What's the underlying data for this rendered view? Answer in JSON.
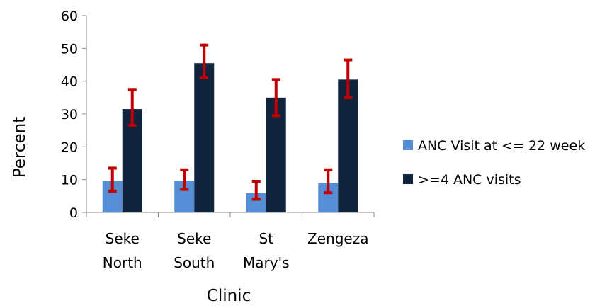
{
  "chart_data": {
    "type": "bar",
    "title": "",
    "xlabel": "Clinic",
    "ylabel": "Percent",
    "ylim": [
      0,
      60
    ],
    "yticks": [
      0,
      10,
      20,
      30,
      40,
      50,
      60
    ],
    "categories": [
      [
        "Seke",
        "North"
      ],
      [
        "Seke",
        "South"
      ],
      [
        "St",
        "Mary's"
      ],
      [
        "Zengeza"
      ]
    ],
    "series": [
      {
        "name": "ANC Visit at <= 22 week",
        "color": "#558ED5",
        "values": [
          9.5,
          9.5,
          6,
          9
        ],
        "error_low": [
          6.5,
          7,
          4,
          6
        ],
        "error_high": [
          13.5,
          13,
          9.5,
          13
        ]
      },
      {
        "name": ">=4 ANC visits",
        "color": "#10243E",
        "values": [
          31.5,
          45.5,
          35,
          40.5
        ],
        "error_low": [
          26.5,
          41,
          29.5,
          35
        ],
        "error_high": [
          37.5,
          51,
          40.5,
          46.5
        ]
      }
    ],
    "error_bar_color": "#C00000",
    "legend_position": "right",
    "grid": false
  }
}
